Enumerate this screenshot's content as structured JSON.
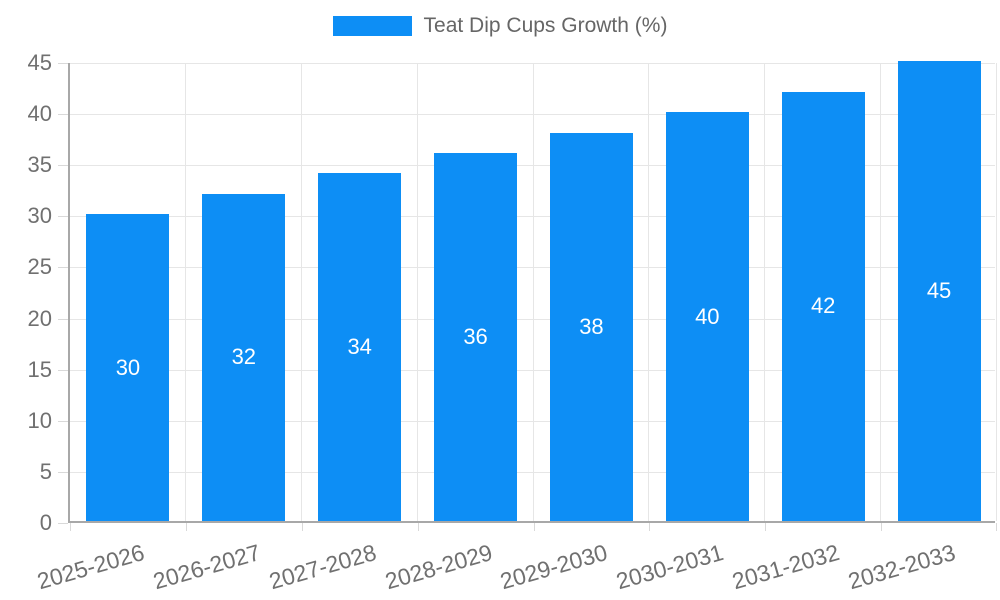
{
  "legend": {
    "label": "Teat Dip Cups Growth (%)"
  },
  "chart_data": {
    "type": "bar",
    "title": "Teat Dip Cups Growth (%)",
    "categories": [
      "2025-2026",
      "2026-2027",
      "2027-2028",
      "2028-2029",
      "2029-2030",
      "2030-2031",
      "2031-2032",
      "2032-2033"
    ],
    "series": [
      {
        "name": "Teat Dip Cups Growth (%)",
        "values": [
          30,
          32,
          34,
          36,
          38,
          40,
          42,
          45
        ]
      }
    ],
    "values": [
      30,
      32,
      34,
      36,
      38,
      40,
      42,
      45
    ],
    "value_labels": [
      "30",
      "32",
      "34",
      "36",
      "38",
      "40",
      "42",
      "45"
    ],
    "xlabel": "",
    "ylabel": "",
    "ylim": [
      0,
      45
    ],
    "ytick_step": 5,
    "ytick_labels": [
      "0",
      "5",
      "10",
      "15",
      "20",
      "25",
      "30",
      "35",
      "40",
      "45"
    ],
    "grid": true,
    "legend_position": "top",
    "colors": {
      "bar": "#0D8EF5",
      "grid": "#E6E6E6",
      "axis_line": "#A8A8A8",
      "tick": "#D9D9D9",
      "axis_text": "#707070",
      "legend_text": "#666666",
      "value_label": "#FFFFFF",
      "background": "#FFFFFF"
    }
  }
}
